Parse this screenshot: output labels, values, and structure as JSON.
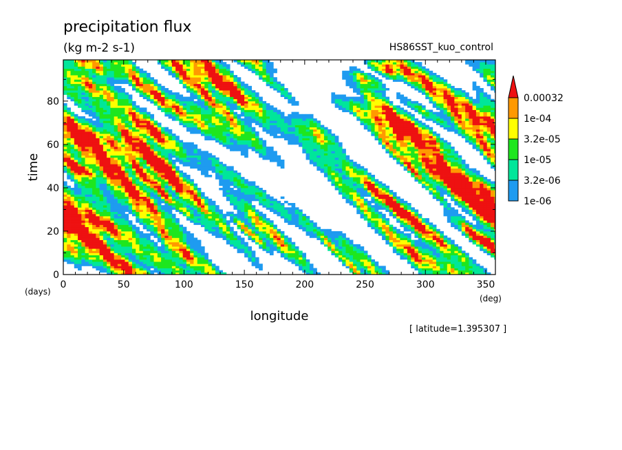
{
  "chart_data": {
    "type": "heatmap",
    "title": "precipitation flux",
    "units": "(kg m-2 s-1)",
    "run_name": "HS86SST_kuo_control",
    "xlabel": "longitude",
    "ylabel": "time",
    "x_unit": "(deg)",
    "y_unit": "(days)",
    "xlim": [
      0,
      358
    ],
    "ylim": [
      0,
      99
    ],
    "x_ticks": [
      0,
      50,
      100,
      150,
      200,
      250,
      300,
      350
    ],
    "y_ticks": [
      0,
      20,
      40,
      60,
      80
    ],
    "annotation": "[ latitude=1.395307 ]",
    "colorbar": {
      "levels": [
        "1e-06",
        "3.2e-06",
        "1e-05",
        "3.2e-05",
        "1e-04",
        "0.00032"
      ],
      "colors": [
        "#1e9bf0",
        "#00e69a",
        "#1ee61e",
        "#ffff00",
        "#ff9900",
        "#ee1111"
      ],
      "extend": "max"
    }
  }
}
